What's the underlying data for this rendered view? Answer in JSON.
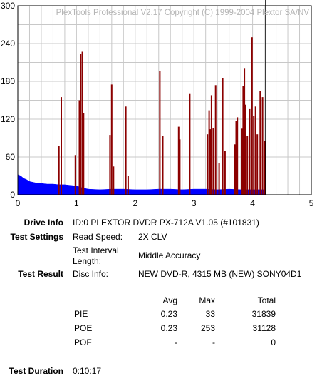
{
  "chart_data": {
    "type": "bar",
    "watermark": "PlexTools Professional V2.17 Copyright (C) 1999-2004 Plextor SA/NV",
    "x_ticks": [
      "0",
      "1",
      "2",
      "3",
      "4",
      "5"
    ],
    "y_ticks": [
      "0",
      "60",
      "120",
      "180",
      "240",
      "300"
    ],
    "xlim": [
      0,
      5
    ],
    "ylim": [
      0,
      300
    ],
    "grid": true,
    "marker_position": 4.22,
    "series": [
      {
        "color": "#8b0000",
        "x": [
          0.7,
          0.74,
          0.98,
          1.05,
          1.07,
          1.1,
          1.12,
          1.57,
          1.6,
          1.63,
          1.84,
          1.88,
          2.42,
          2.47,
          2.74,
          2.76,
          2.93,
          3.23,
          3.26,
          3.28,
          3.3,
          3.33,
          3.37,
          3.43,
          3.49,
          3.53,
          3.7,
          3.72,
          3.74,
          3.82,
          3.84,
          3.86,
          3.88,
          3.91,
          3.95,
          3.99,
          4.02,
          4.05,
          4.08,
          4.13,
          4.17,
          4.21
        ],
        "values": [
          78,
          155,
          63,
          150,
          224,
          227,
          130,
          95,
          175,
          45,
          140,
          30,
          197,
          93,
          108,
          88,
          160,
          96,
          134,
          104,
          158,
          106,
          174,
          50,
          185,
          70,
          80,
          117,
          123,
          105,
          173,
          200,
          143,
          94,
          136,
          250,
          125,
          140,
          96,
          165,
          155,
          86
        ]
      },
      {
        "color": "#0000ff",
        "description_note": "",
        "x": [
          0.0,
          0.05,
          0.1,
          0.15,
          0.2,
          0.3,
          0.4,
          0.5,
          0.6,
          0.7,
          0.8,
          0.9,
          1.0,
          1.1,
          1.2,
          1.4,
          1.6,
          1.8,
          2.0,
          2.2,
          2.4,
          2.6,
          2.8,
          3.0,
          3.2,
          3.4,
          3.6,
          3.8,
          4.0,
          4.2,
          4.22
        ],
        "values": [
          32,
          30,
          26,
          24,
          21,
          19,
          18,
          17,
          17,
          16,
          16,
          15,
          14,
          11,
          9,
          8,
          9,
          9,
          8,
          8,
          9,
          9,
          8,
          9,
          9,
          8,
          9,
          8,
          8,
          8,
          7
        ]
      }
    ]
  },
  "info": {
    "drive_info_label": "Drive Info",
    "drive_info_value": "ID:0 PLEXTOR DVDR PX-712A V1.05 (#101831)",
    "test_settings_label": "Test Settings",
    "read_speed_label": "Read Speed:",
    "read_speed_value": "2X CLV",
    "interval_label_1": "Test Interval",
    "interval_label_2": "Length:",
    "interval_value": "Middle Accuracy",
    "test_result_label": "Test Result",
    "disc_info_label": "Disc Info:",
    "disc_info_value": "NEW DVD-R, 4315 MB (NEW) SONY04D1",
    "test_duration_label": "Test Duration",
    "test_duration_value": "0:10:17"
  },
  "results": {
    "headers": [
      "Avg",
      "Max",
      "Total"
    ],
    "rows": [
      {
        "name": "PIE",
        "avg": "0.23",
        "max": "33",
        "total": "31839"
      },
      {
        "name": "POE",
        "avg": "0.23",
        "max": "253",
        "total": "31128"
      },
      {
        "name": "POF",
        "avg": "-",
        "max": "-",
        "total": "0"
      }
    ]
  }
}
